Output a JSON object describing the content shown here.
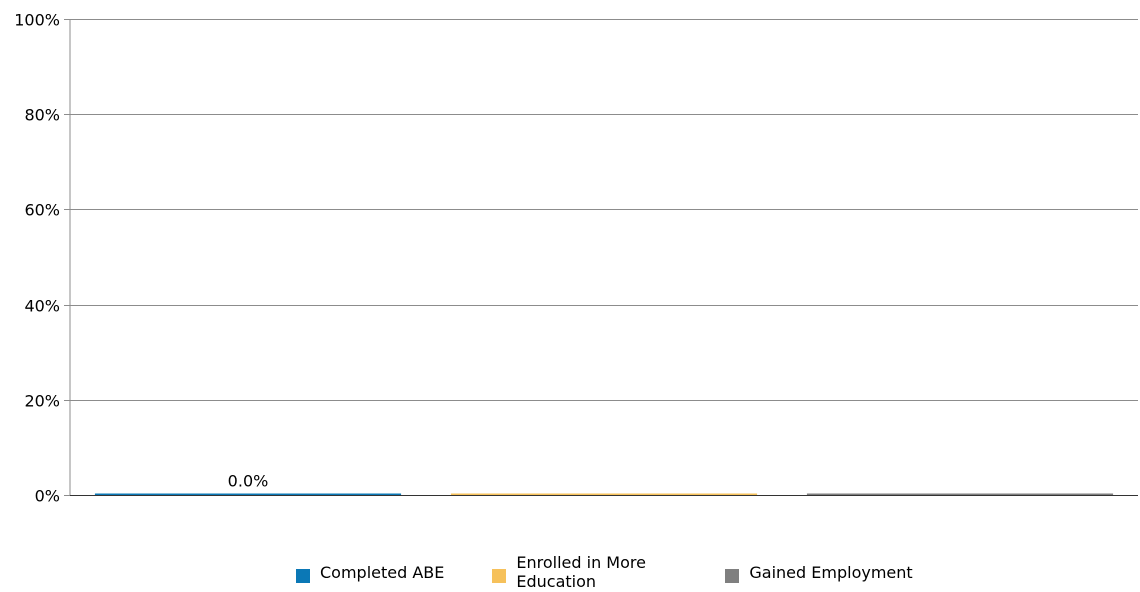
{
  "chart_data": {
    "type": "bar",
    "categories": [
      "Completed ABE",
      "Enrolled in More Education",
      "Gained Employment"
    ],
    "values": [
      0,
      0,
      0
    ],
    "data_labels": [
      "0.0%",
      "",
      ""
    ],
    "colors": [
      "#0b78b6",
      "#f6c15b",
      "#7f7f7f"
    ],
    "ylim": [
      0,
      100
    ],
    "y_ticks": [
      0,
      20,
      40,
      60,
      80,
      100
    ],
    "y_tick_labels": [
      "0%",
      "20%",
      "40%",
      "60%",
      "80%",
      "100%"
    ],
    "grid": true,
    "legend_position": "bottom-center",
    "legend": [
      "Completed ABE",
      "Enrolled in More Education",
      "Gained Employment"
    ]
  }
}
